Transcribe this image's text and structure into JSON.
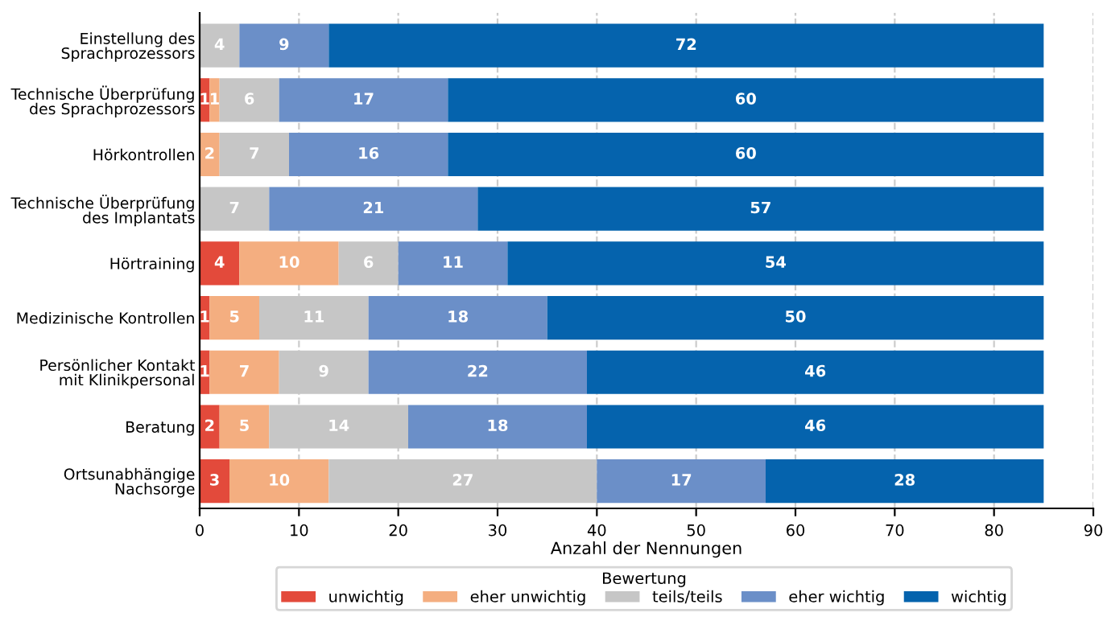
{
  "chart_data": {
    "type": "bar",
    "orientation": "horizontal",
    "stacked": true,
    "categories": [
      "Einstellung des\nSprachprozessors",
      "Technische Überprüfung\ndes Sprachprozessors",
      "Hörkontrollen",
      "Technische Überprüfung\ndes Implantats",
      "Hörtraining",
      "Medizinische Kontrollen",
      "Persönlicher Kontakt\nmit Klinikpersonal",
      "Beratung",
      "Ortsunabhängige\nNachsorge"
    ],
    "series": [
      {
        "name": "unwichtig",
        "color": "#e34a3b",
        "values": [
          0,
          1,
          0,
          0,
          4,
          1,
          1,
          2,
          3
        ],
        "value_labels": [
          null,
          "1",
          null,
          null,
          "4",
          "1",
          "1",
          "2",
          "3"
        ]
      },
      {
        "name": "eher unwichtig",
        "color": "#f4ae80",
        "values": [
          0,
          1,
          2,
          0,
          10,
          5,
          7,
          5,
          10
        ],
        "value_labels": [
          null,
          "1",
          "2",
          null,
          "10",
          "5",
          "7",
          "5",
          "10"
        ]
      },
      {
        "name": "teils/teils",
        "color": "#c6c6c6",
        "values": [
          4,
          6,
          7,
          7,
          6,
          11,
          9,
          14,
          27
        ],
        "value_labels": [
          "4",
          "6",
          "7",
          "7",
          "6",
          "11",
          "9",
          "14",
          "27"
        ]
      },
      {
        "name": "eher wichtig",
        "color": "#6b8fc8",
        "values": [
          9,
          17,
          16,
          21,
          11,
          18,
          22,
          18,
          17
        ],
        "value_labels": [
          "9",
          "17",
          "16",
          "21",
          "11",
          "18",
          "22",
          "18",
          "17"
        ]
      },
      {
        "name": "wichtig",
        "color": "#0563ad",
        "values": [
          72,
          60,
          60,
          57,
          54,
          50,
          46,
          46,
          28
        ],
        "value_labels": [
          "72",
          "60",
          "60",
          "57",
          "54",
          "50",
          "46",
          "46",
          "28"
        ]
      }
    ],
    "xlim": [
      0,
      90
    ],
    "xticks": [
      0,
      10,
      20,
      30,
      40,
      50,
      60,
      70,
      80,
      90
    ],
    "xlabel": "Anzahl der Nennungen",
    "legend_title": "Bewertung",
    "legend": "bottom",
    "grid": "x"
  }
}
